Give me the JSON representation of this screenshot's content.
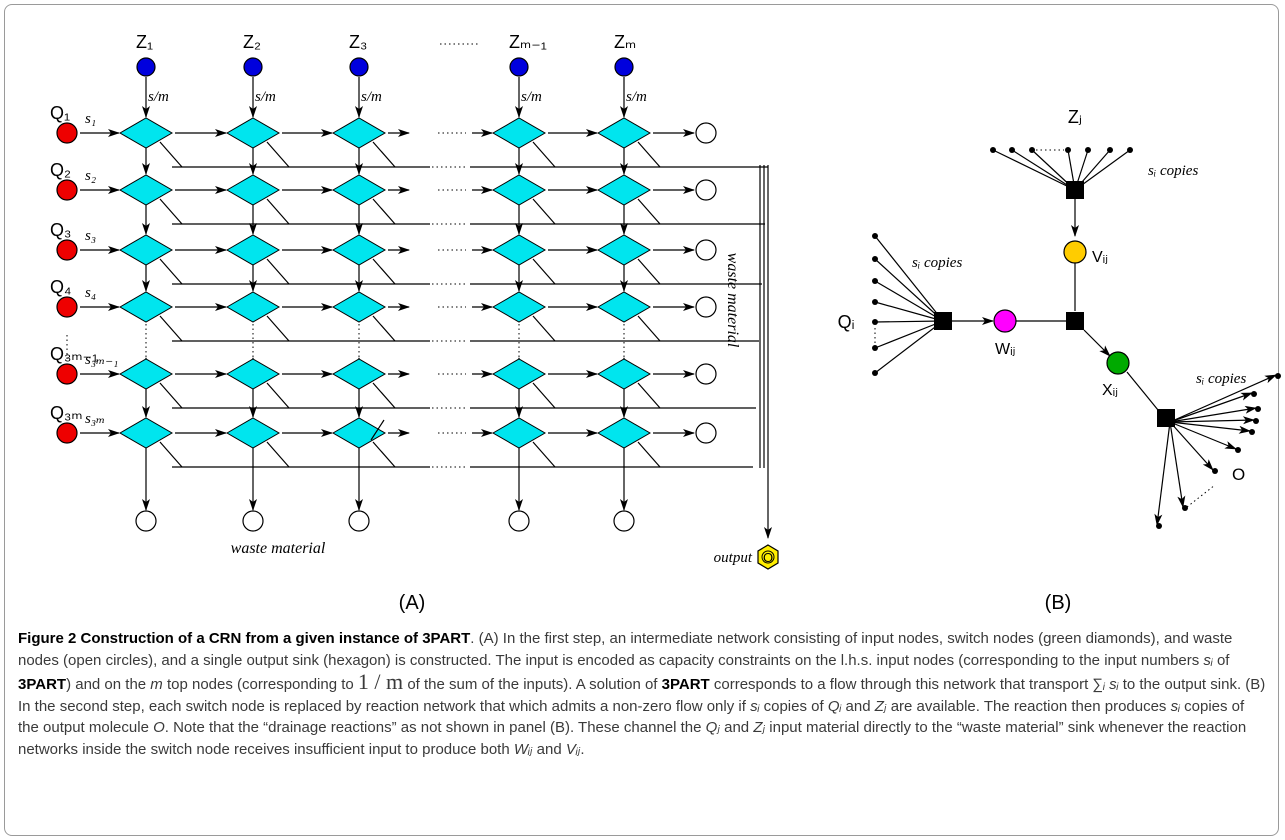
{
  "panel_a": {
    "z_labels": [
      "Z₁",
      "Z₂",
      "Z₃",
      "Zₘ₋₁",
      "Zₘ"
    ],
    "flow_label": "s/m",
    "q_labels": [
      "Q₁",
      "Q₂",
      "Q₃",
      "Q₄",
      "Q₃ₘ₋₁",
      "Q₃ₘ"
    ],
    "s_labels": [
      "s₁",
      "s₂",
      "s₃",
      "s₄",
      "s₃ₘ₋₁",
      "s₃ₘ"
    ],
    "waste_bottom": "waste material",
    "waste_side": "waste material",
    "output_label": "output",
    "output_node": "O",
    "panel_label": "(A)"
  },
  "panel_b": {
    "z_label": "Zⱼ",
    "q_label": "Qᵢ",
    "v_label": "Vᵢⱼ",
    "w_label": "Wᵢⱼ",
    "x_label": "Xᵢⱼ",
    "copies_label": "sᵢ copies",
    "o_label": "O",
    "panel_label": "(B)"
  },
  "colors": {
    "input_red": "#ee0000",
    "top_blue": "#0000dd",
    "switch_cyan": "#00e5ee",
    "v_yellow": "#ffcc00",
    "w_magenta": "#ff00ff",
    "x_green": "#00aa00",
    "output_yellow": "#ffee00"
  },
  "caption": {
    "title": "Figure 2 Construction of a CRN from a given instance of 3PART",
    "t1": ". (A) In the first step, an intermediate network consisting of input nodes, switch nodes (green diamonds), and waste nodes (open circles), and a single output sink (hexagon) is constructed. The input is encoded as capacity constraints on the l.h.s. input nodes (corresponding to the input numbers ",
    "t2": " of ",
    "t3": ") and on the ",
    "t4": " top nodes (corresponding to ",
    "t5": " of the sum of the inputs). A solution of ",
    "t6": " corresponds to a flow through this network that transport ∑",
    "t7": " to the output sink. (B) In the second step, each switch node is replaced by reaction network that which admits a non-zero flow only if ",
    "t8": " copies of ",
    "t9": " and ",
    "t10": " are available. The reaction then produces ",
    "t11": " copies of the output molecule ",
    "t12": ". Note that the “drainage reactions” as not shown in panel (B). These channel the ",
    "t13": " and ",
    "t14": " input material directly to the “waste material” sink whenever the reaction networks inside the switch node receives insufficient input to produce both ",
    "t15": " and ",
    "t16": ".",
    "part3": "3PART",
    "si": "sᵢ",
    "m": "m",
    "frac": "1 / m",
    "sum_sub": "ᵢ sᵢ",
    "qi": "Qᵢ",
    "zj": "Zⱼ",
    "o": "O",
    "qj": "Qⱼ",
    "wij": "Wᵢⱼ",
    "vij": "Vᵢⱼ"
  }
}
